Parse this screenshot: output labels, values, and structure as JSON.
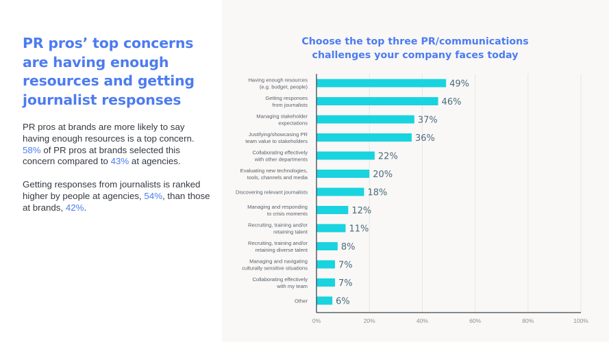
{
  "left_panel": {
    "headline": "PR pros’ top concerns are having enough resources and getting journalist responses",
    "paragraph1": {
      "before": "PR pros at brands are more likely to say having enough resources is a top concern. ",
      "stat1": "58%",
      "middle": " of PR pros at brands selected this concern compared to ",
      "stat2": "43%",
      "after": " at agencies."
    },
    "paragraph2": {
      "before": "Getting responses from journalists is ranked higher by people at agencies, ",
      "stat1": "54%",
      "middle": ", than those at brands, ",
      "stat2": "42%",
      "after": "."
    }
  },
  "colors": {
    "accent": "#4d7cf0",
    "bar": "#19d3df",
    "value_label": "#4a6a7a",
    "axis": "#3c4650",
    "grid": "#e6e6e6",
    "body_text": "#333840"
  },
  "chart_data": {
    "type": "bar",
    "orientation": "horizontal",
    "title": "Choose the top three PR/communications challenges your company faces today",
    "xlabel": "",
    "ylabel": "",
    "xlim": [
      0,
      100
    ],
    "x_ticks": [
      "0%",
      "20%",
      "40%",
      "60%",
      "80%",
      "100%"
    ],
    "grid": true,
    "categories": [
      [
        "Having enough resources",
        "(e.g. budget, people)"
      ],
      [
        "Getting responses",
        "from journalists"
      ],
      [
        "Managing stakeholder",
        "expectations"
      ],
      [
        "Justifying/showcasing PR",
        "team value to stakeholders"
      ],
      [
        "Collaborating effectively",
        "with other departments"
      ],
      [
        "Evaluating new technologies,",
        "tools, channels and media"
      ],
      [
        "Discovering relevant journalists"
      ],
      [
        "Managing and responding",
        "to crisis moments"
      ],
      [
        "Recruiting, training and/or",
        "retaining talent"
      ],
      [
        "Recruiting, training and/or",
        "retaining diverse talent"
      ],
      [
        "Managing and navigating",
        "culturally sensitive situations"
      ],
      [
        "Collaborating effectively",
        "with my team"
      ],
      [
        "Other"
      ]
    ],
    "values": [
      49,
      46,
      37,
      36,
      22,
      20,
      18,
      12,
      11,
      8,
      7,
      7,
      6
    ],
    "value_labels": [
      "49%",
      "46%",
      "37%",
      "36%",
      "22%",
      "20%",
      "18%",
      "12%",
      "11%",
      "8%",
      "7%",
      "7%",
      "6%"
    ]
  }
}
